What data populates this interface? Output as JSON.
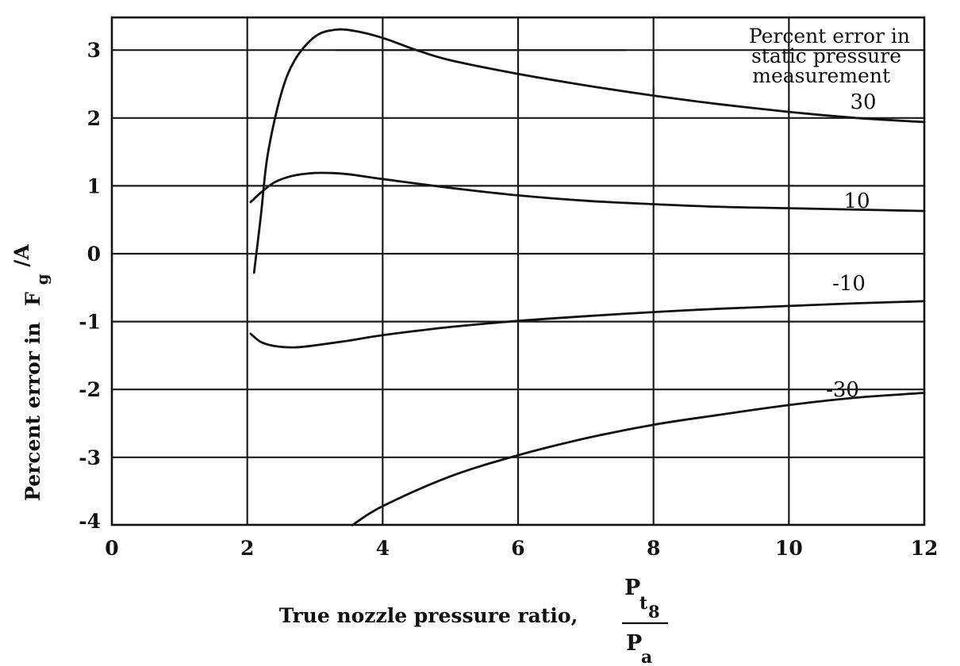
{
  "chart_data": {
    "type": "line",
    "xlim": [
      0,
      12
    ],
    "ylim": [
      -4,
      3.4
    ],
    "x_ticks": [
      "0",
      "2",
      "4",
      "6",
      "8",
      "10",
      "12"
    ],
    "y_ticks": [
      "3",
      "2",
      "1",
      "0",
      "-1",
      "-2",
      "-3",
      "-4"
    ],
    "grid": true,
    "xlabel": "True nozzle pressure ratio,",
    "xlabel_fraction": {
      "num_main": "P",
      "num_sub": "t",
      "num_subsub": "8",
      "den_main": "P",
      "den_sub": "a"
    },
    "ylabel": {
      "prefix": "Percent error in",
      "main": "F",
      "sub": "g",
      "suffix": "/A"
    },
    "legend_title": [
      "Percent error in",
      "static pressure",
      "measurement"
    ],
    "series": [
      {
        "name": "30",
        "x": [
          2.1,
          2.2,
          2.3,
          2.5,
          2.7,
          3.0,
          3.3,
          3.6,
          4.0,
          4.5,
          5.0,
          6.0,
          7.0,
          8.0,
          9.0,
          10.0,
          11.0,
          12.0
        ],
        "y": [
          -0.28,
          0.55,
          1.45,
          2.35,
          2.85,
          3.2,
          3.3,
          3.28,
          3.18,
          3.0,
          2.85,
          2.65,
          2.48,
          2.33,
          2.2,
          2.09,
          2.0,
          1.94
        ]
      },
      {
        "name": "10",
        "x": [
          2.05,
          2.2,
          2.4,
          2.6,
          2.8,
          3.0,
          3.2,
          3.5,
          4.0,
          5.0,
          6.0,
          7.0,
          8.0,
          9.0,
          10.0,
          11.0,
          12.0
        ],
        "y": [
          0.76,
          0.9,
          1.05,
          1.13,
          1.17,
          1.19,
          1.19,
          1.17,
          1.1,
          0.97,
          0.86,
          0.78,
          0.73,
          0.69,
          0.67,
          0.65,
          0.63
        ]
      },
      {
        "name": "-10",
        "x": [
          2.05,
          2.2,
          2.4,
          2.7,
          3.0,
          3.5,
          4.0,
          5.0,
          6.0,
          7.0,
          8.0,
          9.0,
          10.0,
          11.0,
          12.0
        ],
        "y": [
          -1.18,
          -1.3,
          -1.36,
          -1.38,
          -1.35,
          -1.28,
          -1.2,
          -1.08,
          -0.99,
          -0.92,
          -0.86,
          -0.81,
          -0.77,
          -0.73,
          -0.7
        ]
      },
      {
        "name": "-30",
        "x": [
          3.55,
          4.0,
          5.0,
          6.0,
          7.0,
          8.0,
          9.0,
          10.0,
          11.0,
          12.0
        ],
        "y": [
          -4.0,
          -3.72,
          -3.28,
          -2.97,
          -2.72,
          -2.52,
          -2.37,
          -2.23,
          -2.12,
          -2.05
        ]
      }
    ],
    "extra_segments": [
      {
        "x": [
          3.3,
          7.6
        ],
        "y": [
          3.0,
          3.0
        ]
      },
      {
        "x": [
          8.0,
          8.0
        ],
        "y": [
          2.3,
          2.45
        ]
      },
      {
        "x": [
          10.0,
          10.0
        ],
        "y": [
          2.05,
          2.15
        ]
      }
    ]
  }
}
